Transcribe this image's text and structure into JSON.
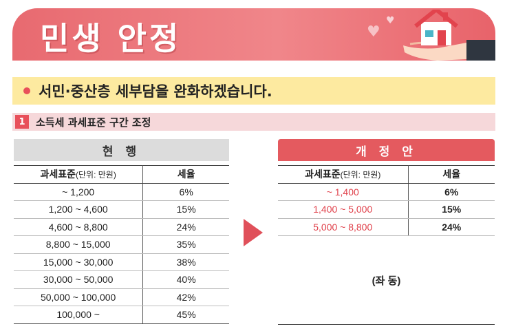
{
  "banner": {
    "title": "민생 안정"
  },
  "subhead": {
    "text": "서민·중산층 세부담을 완화하겠습니다."
  },
  "section": {
    "number": "1",
    "title": "소득세 과세표준 구간 조정"
  },
  "current": {
    "header": "현 행",
    "col_base": "과세표준",
    "col_unit": "(단위: 만원)",
    "col_rate": "세율",
    "rows": [
      {
        "base": "~ 1,200",
        "rate": "6%"
      },
      {
        "base": "1,200 ~ 4,600",
        "rate": "15%"
      },
      {
        "base": "4,600 ~ 8,800",
        "rate": "24%"
      },
      {
        "base": "8,800 ~ 15,000",
        "rate": "35%"
      },
      {
        "base": "15,000 ~ 30,000",
        "rate": "38%"
      },
      {
        "base": "30,000 ~ 50,000",
        "rate": "40%"
      },
      {
        "base": "50,000 ~ 100,000",
        "rate": "42%"
      },
      {
        "base": "100,000 ~",
        "rate": "45%"
      }
    ]
  },
  "proposal": {
    "header": "개 정 안",
    "col_base": "과세표준",
    "col_unit": "(단위: 만원)",
    "col_rate": "세율",
    "rows": [
      {
        "base": "~ 1,400",
        "rate": "6%"
      },
      {
        "base": "1,400 ~ 5,000",
        "rate": "15%"
      },
      {
        "base": "5,000 ~ 8,800",
        "rate": "24%"
      }
    ],
    "note": "(좌 동)"
  },
  "colors": {
    "accent": "#e45a5f",
    "highlight": "#fdeaa0",
    "section_bg": "#f6d8da"
  },
  "icons": [
    "heart-icon",
    "house-in-hand-icon",
    "arrow-right-icon"
  ]
}
